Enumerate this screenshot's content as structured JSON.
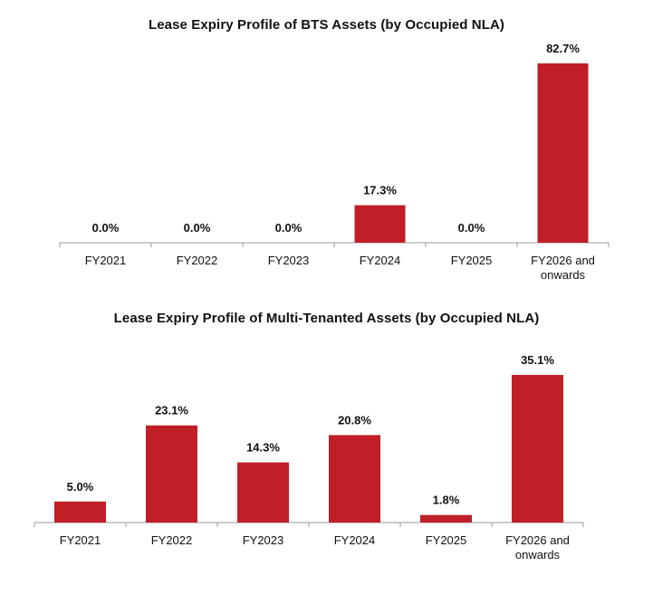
{
  "chart_data": [
    {
      "type": "bar",
      "title": "Lease Expiry Profile of BTS Assets (by Occupied NLA)",
      "categories": [
        "FY2021",
        "FY2022",
        "FY2023",
        "FY2024",
        "FY2025",
        "FY2026 and onwards"
      ],
      "values": [
        0.0,
        0.0,
        0.0,
        17.3,
        0.0,
        82.7
      ],
      "data_labels": [
        "0.0%",
        "0.0%",
        "0.0%",
        "17.3%",
        "0.0%",
        "82.7%"
      ],
      "ylim": [
        0,
        90
      ],
      "bar_color": "#c01f28",
      "grid": false,
      "legend": "none"
    },
    {
      "type": "bar",
      "title": "Lease Expiry Profile of Multi-Tenanted Assets (by Occupied NLA)",
      "categories": [
        "FY2021",
        "FY2022",
        "FY2023",
        "FY2024",
        "FY2025",
        "FY2026 and onwards"
      ],
      "values": [
        5.0,
        23.1,
        14.3,
        20.8,
        1.8,
        35.1
      ],
      "data_labels": [
        "5.0%",
        "23.1%",
        "14.3%",
        "20.8%",
        "1.8%",
        "35.1%"
      ],
      "ylim": [
        0,
        40
      ],
      "bar_color": "#c01f28",
      "grid": false,
      "legend": "none"
    }
  ]
}
